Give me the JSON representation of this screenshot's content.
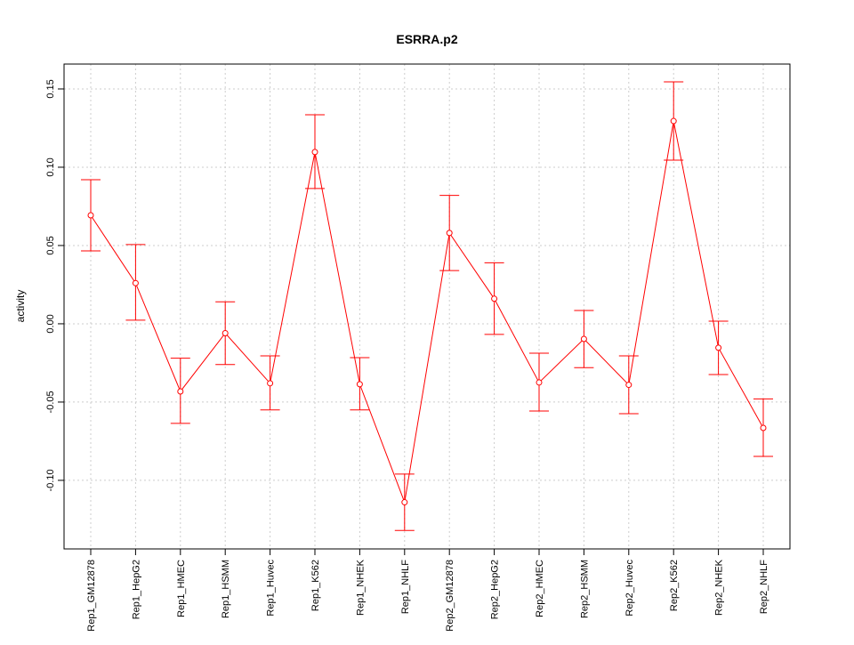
{
  "chart_data": {
    "type": "line",
    "title": "ESRRA.p2",
    "xlabel": "",
    "ylabel": "activity",
    "ylim": [
      -0.1438,
      0.1659
    ],
    "yticks": [
      -0.1,
      -0.05,
      0.0,
      0.05,
      0.1,
      0.15
    ],
    "ytick_labels": [
      "-0.10",
      "-0.05",
      "0.00",
      "0.05",
      "0.10",
      "0.15"
    ],
    "grid": true,
    "color": "#ff0000",
    "categories": [
      "Rep1_GM12878",
      "Rep1_HepG2",
      "Rep1_HMEC",
      "Rep1_HSMM",
      "Rep1_Huvec",
      "Rep1_K562",
      "Rep1_NHEK",
      "Rep1_NHLF",
      "Rep2_GM12878",
      "Rep2_HepG2",
      "Rep2_HMEC",
      "Rep2_HSMM",
      "Rep2_Huvec",
      "Rep2_K562",
      "Rep2_NHEK",
      "Rep2_NHLF"
    ],
    "values": [
      0.0693,
      0.026,
      -0.0432,
      -0.006,
      -0.038,
      0.1097,
      -0.0386,
      -0.114,
      0.058,
      0.016,
      -0.0375,
      -0.0097,
      -0.039,
      0.1295,
      -0.0153,
      -0.0665
    ],
    "upper": [
      0.092,
      0.0506,
      -0.022,
      0.014,
      -0.0205,
      0.1335,
      -0.0216,
      -0.096,
      0.082,
      0.039,
      -0.0188,
      0.0085,
      -0.0205,
      0.1545,
      0.0017,
      -0.048
    ],
    "lower": [
      0.0466,
      0.0023,
      -0.0636,
      -0.026,
      -0.055,
      0.0864,
      -0.055,
      -0.132,
      0.034,
      -0.0068,
      -0.0557,
      -0.028,
      -0.0574,
      0.1045,
      -0.0324,
      -0.0847
    ]
  }
}
